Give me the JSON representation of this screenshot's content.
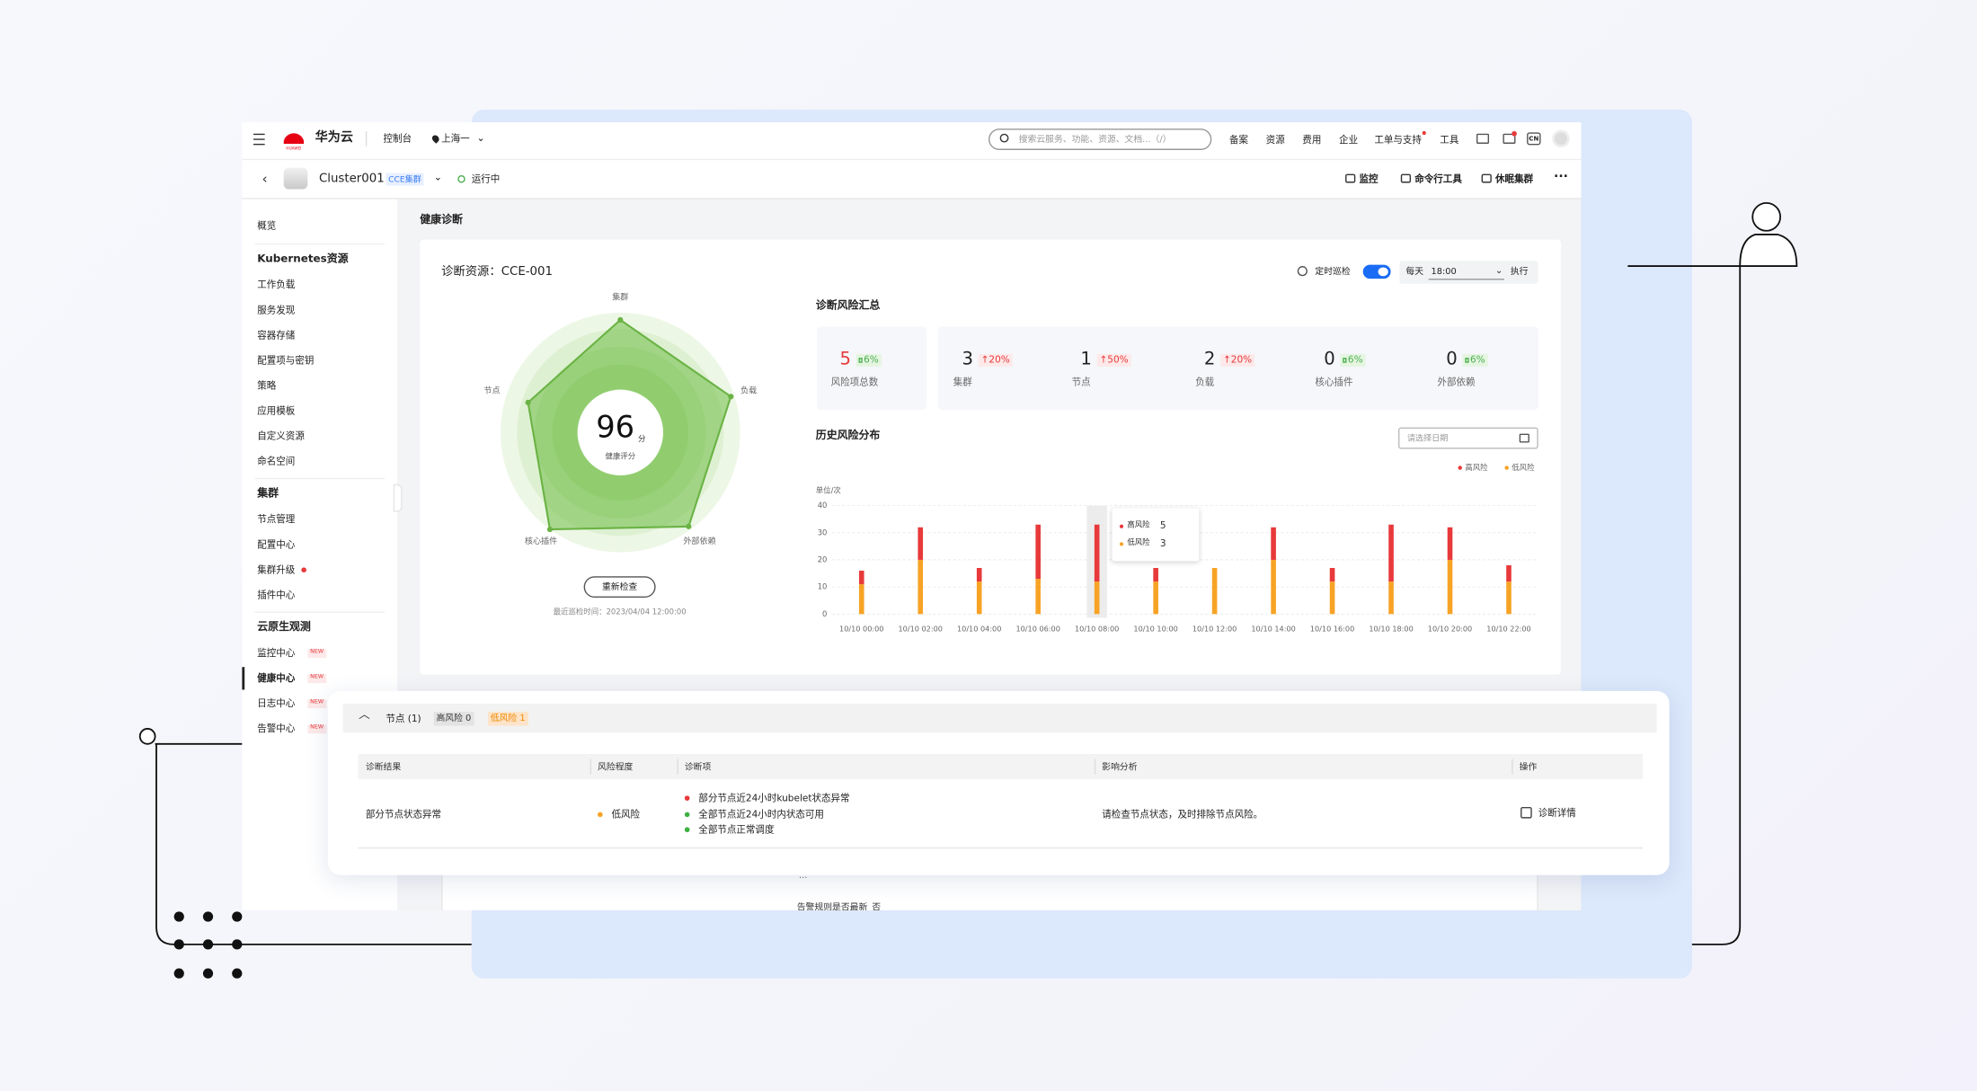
{
  "nav": {
    "logo_text": "HUAWEI",
    "brand": "华为云",
    "console": "控制台",
    "region": "上海一",
    "search_placeholder": "搜索云服务、功能、资源、文档...（/）",
    "links": [
      "备案",
      "资源",
      "费用",
      "企业",
      "工单与支持",
      "工具"
    ],
    "lang": "CN"
  },
  "cluster": {
    "name": "Cluster001",
    "tag": "CCE集群",
    "status": "运行中",
    "actions": [
      "监控",
      "命令行工具",
      "休眠集群"
    ]
  },
  "sidebar": {
    "overview": "概览",
    "groups": [
      {
        "title": "Kubernetes资源",
        "items": [
          {
            "label": "工作负载"
          },
          {
            "label": "服务发现"
          },
          {
            "label": "容器存储"
          },
          {
            "label": "配置项与密钥"
          },
          {
            "label": "策略"
          },
          {
            "label": "应用模板"
          },
          {
            "label": "自定义资源"
          },
          {
            "label": "命名空间"
          }
        ]
      },
      {
        "title": "集群",
        "items": [
          {
            "label": "节点管理"
          },
          {
            "label": "配置中心"
          },
          {
            "label": "集群升级",
            "dot": true
          },
          {
            "label": "插件中心"
          }
        ]
      },
      {
        "title": "云原生观测",
        "items": [
          {
            "label": "监控中心",
            "badge": "NEW"
          },
          {
            "label": "健康中心",
            "badge": "NEW",
            "active": true
          },
          {
            "label": "日志中心",
            "badge": "NEW"
          },
          {
            "label": "告警中心",
            "badge": "NEW"
          }
        ]
      }
    ]
  },
  "page": {
    "title": "健康诊断",
    "resource": "诊断资源：CCE-001",
    "schedule": {
      "label": "定时巡检",
      "enabled": true,
      "frequency": "每天",
      "time": "18:00",
      "action": "执行"
    }
  },
  "score": {
    "value": 96,
    "unit": "分",
    "label": "健康评分"
  },
  "recheck": "重新检查",
  "last_check": "最近巡检时间：2023/04/04 12:00:00",
  "summary": {
    "title": "诊断风险汇总",
    "items": [
      {
        "value": 5,
        "change": "6%",
        "trend": "down",
        "label": "风险项总数"
      },
      {
        "value": 3,
        "change": "↑20%",
        "trend": "up",
        "label": "集群"
      },
      {
        "value": 1,
        "change": "↑50%",
        "trend": "up",
        "label": "节点"
      },
      {
        "value": 2,
        "change": "↑20%",
        "trend": "up",
        "label": "负载"
      },
      {
        "value": 0,
        "change": "6%",
        "trend": "down",
        "label": "核心插件"
      },
      {
        "value": 0,
        "change": "6%",
        "trend": "down",
        "label": "外部依赖"
      }
    ]
  },
  "history": {
    "title": "历史风险分布",
    "date_placeholder": "请选择日期"
  },
  "chart_data": [
    {
      "type": "radar",
      "axes": [
        "集群",
        "负载",
        "外部依赖",
        "核心插件",
        "节点"
      ],
      "values": [
        94,
        97,
        97,
        100,
        81
      ],
      "rlim": [
        0,
        100
      ],
      "color": "#6ab344"
    },
    {
      "type": "bar",
      "stacked": true,
      "unit_label": "单位/次",
      "categories": [
        "10/10 00:00",
        "10/10 02:00",
        "10/10 04:00",
        "10/10 06:00",
        "10/10 08:00",
        "10/10 10:00",
        "10/10 12:00",
        "10/10 14:00",
        "10/10 16:00",
        "10/10 18:00",
        "10/10 20:00",
        "10/10 22:00"
      ],
      "series": [
        {
          "name": "高风险",
          "color": "#e8393b",
          "values": [
            5,
            12,
            5,
            20,
            21,
            5,
            0,
            12,
            5,
            21,
            12,
            6
          ]
        },
        {
          "name": "低风险",
          "color": "#f7a325",
          "values": [
            11,
            20,
            12,
            13,
            12,
            12,
            17,
            20,
            12,
            12,
            20,
            12
          ]
        }
      ],
      "ylim": [
        0,
        40
      ],
      "yticks": [
        0,
        10,
        20,
        30,
        40
      ],
      "grid": true,
      "tooltip": {
        "items": [
          {
            "name": "高风险",
            "value": 5
          },
          {
            "name": "低风险",
            "value": 3
          }
        ]
      }
    }
  ],
  "detail": {
    "group": "节点 (1)",
    "high": "高风险 0",
    "low": "低风险 1",
    "columns": [
      "诊断结果",
      "风险程度",
      "诊断项",
      "影响分析",
      "操作"
    ],
    "rows": [
      {
        "result": "部分节点状态异常",
        "level": "低风险",
        "checks": [
          {
            "text": "部分节点近24小时kubelet状态异常",
            "status": "fail"
          },
          {
            "text": "全部节点近24小时内状态可用",
            "status": "ok"
          },
          {
            "text": "全部节点正常调度",
            "status": "ok"
          }
        ],
        "impact": "请检查节点状态，及时排除节点风险。",
        "action": "诊断详情"
      }
    ],
    "more": "···",
    "next_row": "告警规则是否最新_否"
  }
}
